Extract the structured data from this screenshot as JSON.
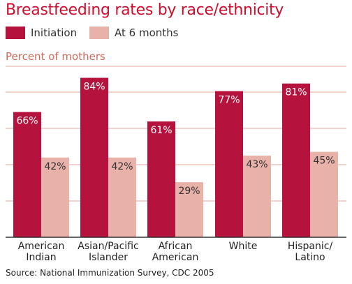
{
  "chart_data": {
    "type": "bar",
    "title": "Breastfeeding rates by race/ethnicity",
    "ylabel": "Percent of mothers",
    "source": "Source: National Immunization Survey, CDC 2005",
    "categories": [
      [
        "American",
        "Indian"
      ],
      [
        "Asian/Pacific",
        "Islander"
      ],
      [
        "African",
        "American"
      ],
      [
        "White"
      ],
      [
        "Hispanic/",
        "Latino"
      ]
    ],
    "series": [
      {
        "name": "Initiation",
        "color": "#b5123d",
        "values": [
          66,
          84,
          61,
          77,
          81
        ],
        "labels": [
          "66%",
          "84%",
          "61%",
          "77%",
          "81%"
        ]
      },
      {
        "name": "At 6 months",
        "color": "#e8b1a9",
        "values": [
          42,
          42,
          29,
          43,
          45
        ],
        "labels": [
          "42%",
          "42%",
          "29%",
          "43%",
          "45%"
        ]
      }
    ],
    "ylim": [
      0,
      100
    ],
    "grid": true,
    "legend": "top-left",
    "colors": {
      "title": "#c8102e",
      "ylabel": "#d06a5a",
      "grid": "#e3a79d",
      "axis": "#333333"
    }
  }
}
